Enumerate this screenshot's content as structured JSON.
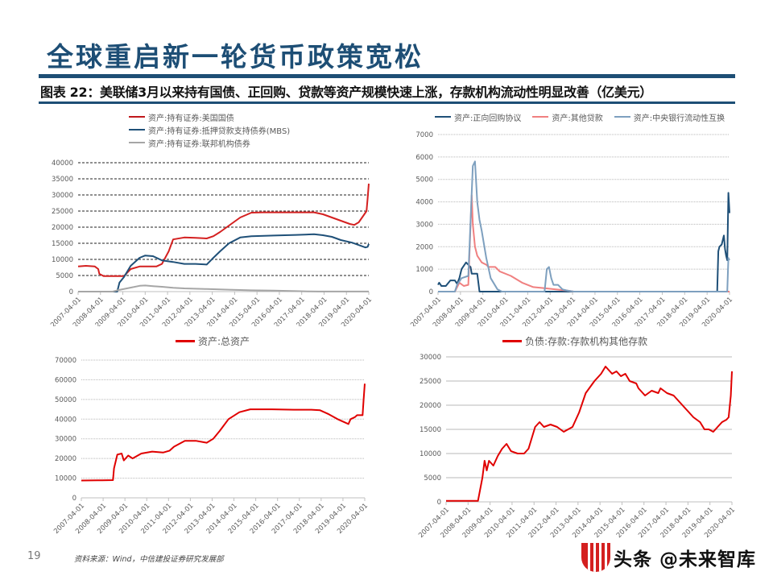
{
  "header": {
    "title": "全球重启新一轮货币政策宽松",
    "caption": "图表 22：美联储3月以来持有国债、正回购、贷款等资产规模快速上涨，存款机构流动性明显改善（亿美元）"
  },
  "footer": {
    "page_number": "19",
    "source": "资料来源：Wind，中信建投证券研究发展部",
    "watermark": "头条 @未来智库"
  },
  "colors": {
    "brand_blue": "#1d4e75",
    "red": "#e00000",
    "dark_red": "#c0181c",
    "navy": "#1f5078",
    "gray": "#a6a6a6",
    "pink": "#f08080",
    "steel_blue": "#7ea0bf"
  },
  "chart_data": [
    {
      "type": "line",
      "title": "",
      "legend": [
        "资产:持有证券:美国国债",
        "资产:持有证券:抵押贷款支持债券(MBS)",
        "资产:持有证券:联邦机构债券"
      ],
      "legend_position": "top",
      "xlabel": "",
      "ylabel": "",
      "ylim": [
        0,
        40000
      ],
      "yticks": [
        0,
        5000,
        10000,
        15000,
        20000,
        25000,
        30000,
        35000,
        40000
      ],
      "x_ticks": [
        "2007-04-01",
        "2008-04-01",
        "2009-04-01",
        "2010-04-01",
        "2011-04-01",
        "2012-04-01",
        "2013-04-01",
        "2014-04-01",
        "2015-04-01",
        "2016-04-01",
        "2017-04-01",
        "2018-04-01",
        "2019-04-01",
        "2020-04-01"
      ],
      "grid": "dashed",
      "series": [
        {
          "name": "资产:持有证券:美国国债",
          "color": "#d42020",
          "x": [
            2007.25,
            2007.6,
            2008.0,
            2008.15,
            2008.2,
            2008.4,
            2009.0,
            2009.3,
            2009.6,
            2010.0,
            2010.5,
            2010.75,
            2011.0,
            2011.3,
            2011.5,
            2012.0,
            2012.5,
            2013.0,
            2013.3,
            2013.6,
            2014.0,
            2014.5,
            2015.0,
            2015.5,
            2016.0,
            2017.0,
            2017.8,
            2018.2,
            2018.6,
            2019.0,
            2019.4,
            2019.6,
            2019.8,
            2020.0,
            2020.15,
            2020.2,
            2020.25
          ],
          "values": [
            7800,
            8000,
            7800,
            7000,
            5500,
            4800,
            4800,
            4800,
            7000,
            7800,
            7800,
            7800,
            8600,
            12500,
            16200,
            16800,
            16700,
            16500,
            17200,
            18500,
            20500,
            23000,
            24500,
            24600,
            24600,
            24600,
            24600,
            24000,
            23000,
            22000,
            21000,
            20700,
            21500,
            23500,
            25000,
            29000,
            33500
          ]
        },
        {
          "name": "资产:持有证券:抵押贷款支持债券(MBS)",
          "color": "#1f5078",
          "x": [
            2007.25,
            2009.0,
            2009.1,
            2009.3,
            2009.6,
            2010.0,
            2010.25,
            2010.6,
            2011.0,
            2011.5,
            2012.0,
            2012.5,
            2013.0,
            2013.3,
            2013.6,
            2014.0,
            2014.5,
            2015.0,
            2016.0,
            2017.0,
            2017.8,
            2018.2,
            2018.6,
            2019.0,
            2019.5,
            2019.9,
            2020.1,
            2020.2,
            2020.25
          ],
          "values": [
            0,
            0,
            2800,
            4500,
            8000,
            10500,
            11200,
            11000,
            9700,
            9200,
            8600,
            8600,
            8400,
            10500,
            12500,
            15000,
            16800,
            17200,
            17400,
            17600,
            17800,
            17500,
            17000,
            16000,
            15200,
            14200,
            13700,
            13900,
            14800
          ]
        },
        {
          "name": "资产:持有证券:联邦机构债券",
          "color": "#a6a6a6",
          "x": [
            2007.25,
            2008.8,
            2009.0,
            2009.5,
            2010.0,
            2010.25,
            2010.6,
            2011.0,
            2011.5,
            2012.0,
            2013.0,
            2014.0,
            2015.0,
            2016.0,
            2017.0,
            2017.6,
            2018.0,
            2020.25
          ],
          "values": [
            0,
            0,
            400,
            1100,
            1800,
            1900,
            1700,
            1500,
            1200,
            1000,
            800,
            600,
            400,
            300,
            150,
            50,
            20,
            20
          ]
        }
      ]
    },
    {
      "type": "line",
      "title": "",
      "legend": [
        "资产:正向回购协议",
        "资产:其他贷款",
        "资产:中央银行流动性互换"
      ],
      "legend_position": "top",
      "xlabel": "",
      "ylabel": "",
      "ylim": [
        0,
        7000
      ],
      "yticks": [
        0,
        1000,
        2000,
        3000,
        4000,
        5000,
        6000,
        7000
      ],
      "x_ticks": [
        "2007-04-01",
        "2008-04-01",
        "2009-04-01",
        "2010-04-01",
        "2011-04-01",
        "2012-04-01",
        "2013-04-01",
        "2014-04-01",
        "2015-04-01",
        "2016-04-01",
        "2017-04-01",
        "2018-04-01",
        "2019-04-01",
        "2020-04-01"
      ],
      "grid": "dotted",
      "series": [
        {
          "name": "资产:正向回购协议",
          "color": "#1f5078",
          "x": [
            2007.25,
            2007.3,
            2007.4,
            2007.6,
            2007.8,
            2008.0,
            2008.1,
            2008.2,
            2008.3,
            2008.5,
            2008.7,
            2008.75,
            2009.0,
            2009.1,
            2019.7,
            2019.75,
            2019.8,
            2019.9,
            2020.0,
            2020.05,
            2020.1,
            2020.15,
            2020.2,
            2020.25
          ],
          "values": [
            300,
            400,
            250,
            250,
            500,
            500,
            350,
            600,
            1000,
            1300,
            1100,
            800,
            800,
            0,
            0,
            1800,
            2000,
            2100,
            2500,
            1900,
            1600,
            1400,
            4400,
            3500
          ]
        },
        {
          "name": "资产:其他贷款",
          "color": "#f08080",
          "x": [
            2007.25,
            2007.8,
            2008.0,
            2008.2,
            2008.4,
            2008.6,
            2008.75,
            2008.8,
            2008.9,
            2009.0,
            2009.2,
            2009.4,
            2009.5,
            2009.8,
            2010.0,
            2010.5,
            2011.0,
            2011.5,
            2012.0,
            2012.5,
            2013.0,
            2013.3,
            2020.25
          ],
          "values": [
            0,
            0,
            0,
            400,
            250,
            300,
            4300,
            3000,
            2000,
            1600,
            1300,
            1200,
            1100,
            1100,
            900,
            700,
            400,
            200,
            150,
            100,
            50,
            0,
            0
          ]
        },
        {
          "name": "资产:中央银行流动性互换",
          "color": "#7ea0bf",
          "x": [
            2007.25,
            2008.0,
            2008.1,
            2008.3,
            2008.6,
            2008.8,
            2008.9,
            2009.0,
            2009.1,
            2009.2,
            2009.4,
            2009.6,
            2009.9,
            2010.1,
            2012.0,
            2012.1,
            2012.2,
            2012.3,
            2012.4,
            2012.6,
            2012.8,
            2013.0,
            2013.3,
            2019.9,
            2020.15,
            2020.2,
            2020.25
          ],
          "values": [
            0,
            0,
            300,
            600,
            700,
            5600,
            5800,
            4000,
            3200,
            2700,
            1500,
            600,
            100,
            0,
            0,
            1000,
            1100,
            600,
            300,
            300,
            100,
            50,
            0,
            0,
            0,
            1500,
            1400
          ]
        }
      ]
    },
    {
      "type": "line",
      "title": "",
      "legend": [
        "资产:总资产"
      ],
      "legend_position": "top",
      "xlabel": "",
      "ylabel": "",
      "ylim": [
        0,
        70000
      ],
      "yticks": [
        0,
        10000,
        20000,
        30000,
        40000,
        50000,
        60000,
        70000
      ],
      "x_ticks": [
        "2007-04-01",
        "2008-04-01",
        "2009-04-01",
        "2010-04-01",
        "2011-04-01",
        "2012-04-01",
        "2013-04-01",
        "2014-04-01",
        "2015-04-01",
        "2016-04-01",
        "2017-04-01",
        "2018-04-01",
        "2019-04-01",
        "2020-04-01"
      ],
      "grid": "dotted",
      "series": [
        {
          "name": "资产:总资产",
          "color": "#e00000",
          "x": [
            2007.25,
            2008.0,
            2008.7,
            2008.75,
            2008.9,
            2009.1,
            2009.2,
            2009.4,
            2009.6,
            2010.0,
            2010.5,
            2011.0,
            2011.3,
            2011.5,
            2012.0,
            2012.5,
            2013.0,
            2013.3,
            2013.6,
            2014.0,
            2014.5,
            2015.0,
            2015.5,
            2016.0,
            2017.0,
            2017.8,
            2018.2,
            2018.6,
            2019.0,
            2019.3,
            2019.5,
            2019.6,
            2019.8,
            2019.9,
            2020.15,
            2020.2,
            2020.25
          ],
          "values": [
            8800,
            8900,
            9000,
            15000,
            22000,
            22500,
            19000,
            21500,
            20000,
            22500,
            23500,
            23000,
            24000,
            26000,
            29000,
            29000,
            28000,
            30000,
            34000,
            40000,
            43500,
            45000,
            45000,
            45000,
            44800,
            44800,
            44500,
            42500,
            40000,
            38500,
            37500,
            40000,
            41000,
            42000,
            42000,
            50000,
            58000
          ]
        }
      ]
    },
    {
      "type": "line",
      "title": "",
      "legend": [
        "负债:存款:存款机构其他存款"
      ],
      "legend_position": "top",
      "xlabel": "",
      "ylabel": "",
      "ylim": [
        0,
        30000
      ],
      "yticks": [
        0,
        5000,
        10000,
        15000,
        20000,
        25000,
        30000
      ],
      "x_ticks": [
        "2007-04-01",
        "2008-04-01",
        "2009-04-01",
        "2010-04-01",
        "2011-04-01",
        "2012-04-01",
        "2013-04-01",
        "2014-04-01",
        "2015-04-01",
        "2016-04-01",
        "2017-04-01",
        "2018-04-01",
        "2019-04-01",
        "2020-04-01"
      ],
      "grid": "solid",
      "series": [
        {
          "name": "负债:存款:存款机构其他存款",
          "color": "#e00000",
          "x": [
            2007.25,
            2008.0,
            2008.7,
            2008.9,
            2009.0,
            2009.1,
            2009.2,
            2009.4,
            2009.6,
            2009.8,
            2010.0,
            2010.2,
            2010.5,
            2010.8,
            2011.0,
            2011.3,
            2011.5,
            2011.7,
            2012.0,
            2012.3,
            2012.6,
            2013.0,
            2013.3,
            2013.6,
            2014.0,
            2014.3,
            2014.5,
            2014.8,
            2015.0,
            2015.2,
            2015.4,
            2015.6,
            2015.9,
            2016.0,
            2016.3,
            2016.6,
            2016.9,
            2017.0,
            2017.3,
            2017.6,
            2017.9,
            2018.2,
            2018.5,
            2018.8,
            2019.0,
            2019.2,
            2019.4,
            2019.6,
            2019.8,
            2020.0,
            2020.1,
            2020.2,
            2020.25
          ],
          "values": [
            200,
            200,
            200,
            5000,
            8500,
            6500,
            8500,
            7500,
            9500,
            11000,
            12000,
            10500,
            10000,
            10000,
            11000,
            15500,
            16500,
            15500,
            16000,
            15500,
            14500,
            15500,
            18500,
            22500,
            25000,
            26500,
            28000,
            26500,
            27000,
            26000,
            26500,
            25000,
            24500,
            23500,
            22000,
            23000,
            22500,
            23500,
            22500,
            22000,
            20500,
            19000,
            17500,
            16500,
            15000,
            15000,
            14500,
            15500,
            16500,
            17000,
            17500,
            22000,
            27000
          ]
        }
      ]
    }
  ]
}
